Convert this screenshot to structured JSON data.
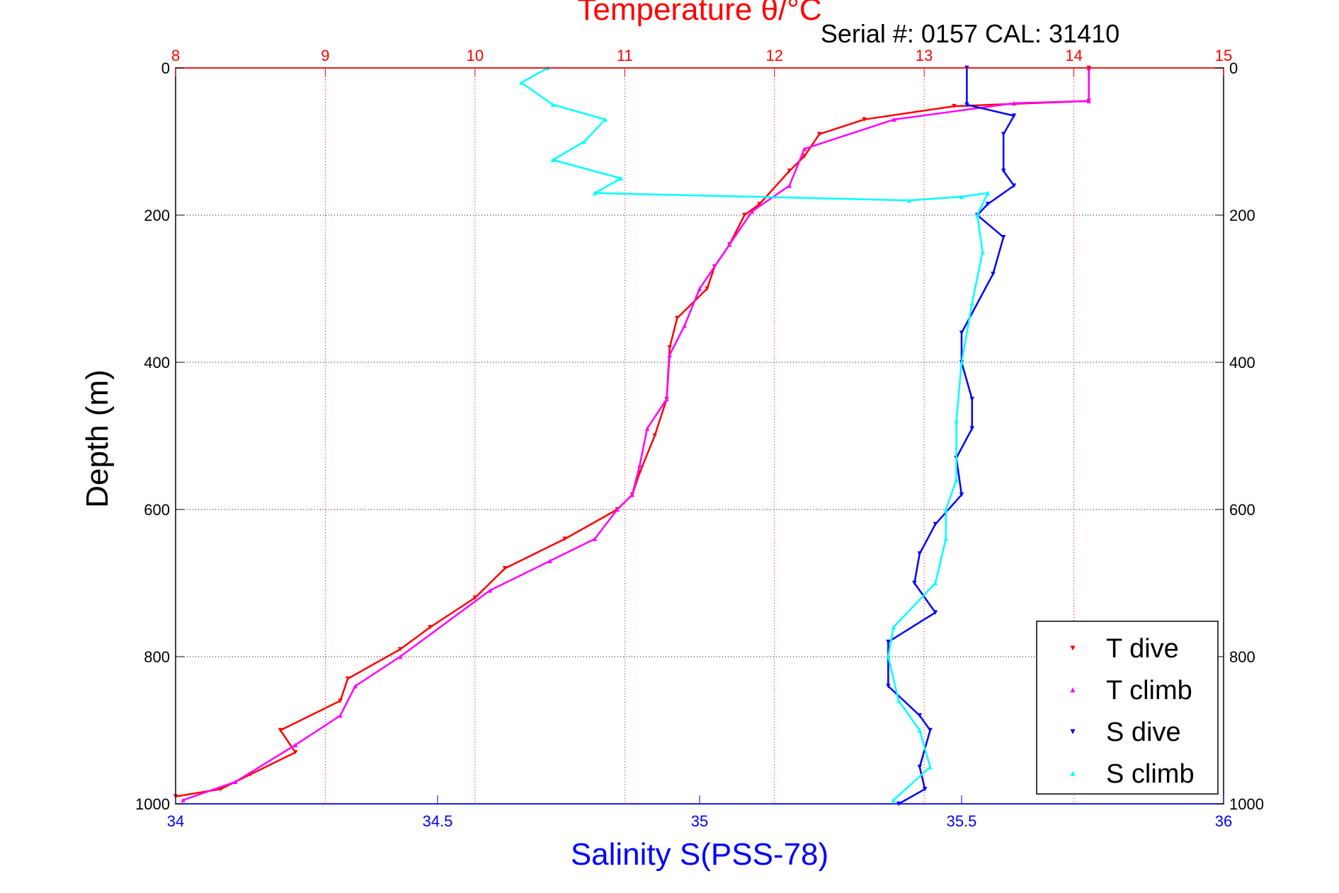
{
  "chart_data": {
    "type": "scatter",
    "title": "Temperature θ/°C",
    "subtitle": "Serial #: 0157  CAL: 31410",
    "ylabel": "Depth (m)",
    "xlabel": "Salinity S(PSS-78)",
    "temperature_axis": {
      "position": "top",
      "range": [
        8,
        15
      ],
      "ticks": [
        8,
        9,
        10,
        11,
        12,
        13,
        14,
        15
      ],
      "tick_labels": [
        "8",
        "9",
        "10",
        "11",
        "12",
        "13",
        "14",
        "15"
      ],
      "color": "#ff0000"
    },
    "salinity_axis": {
      "position": "bottom",
      "range": [
        34,
        36
      ],
      "ticks": [
        34,
        34.5,
        35,
        35.5,
        36
      ],
      "tick_labels": [
        "34",
        "34.5",
        "35",
        "35.5",
        "36"
      ],
      "color": "#0000ff"
    },
    "depth_axis": {
      "range": [
        0,
        1000
      ],
      "reversed": true,
      "ticks": [
        0,
        200,
        400,
        600,
        800,
        1000
      ],
      "tick_labels": [
        "0",
        "200",
        "400",
        "600",
        "800",
        "1000"
      ]
    },
    "grid": true,
    "legend": {
      "placement": "bottom-right"
    },
    "series": [
      {
        "name": "T dive",
        "axis": "temperature",
        "color": "#ff0000",
        "points": [
          [
            14.1,
            0
          ],
          [
            14.1,
            45
          ],
          [
            13.2,
            52
          ],
          [
            12.6,
            70
          ],
          [
            12.3,
            90
          ],
          [
            12.2,
            120
          ],
          [
            12.1,
            140
          ],
          [
            11.9,
            185
          ],
          [
            11.8,
            200
          ],
          [
            11.7,
            240
          ],
          [
            11.6,
            270
          ],
          [
            11.55,
            300
          ],
          [
            11.35,
            340
          ],
          [
            11.3,
            380
          ],
          [
            11.28,
            450
          ],
          [
            11.2,
            500
          ],
          [
            11.1,
            550
          ],
          [
            11.05,
            580
          ],
          [
            10.95,
            600
          ],
          [
            10.6,
            640
          ],
          [
            10.2,
            680
          ],
          [
            10.0,
            720
          ],
          [
            9.7,
            760
          ],
          [
            9.5,
            790
          ],
          [
            9.15,
            830
          ],
          [
            9.1,
            860
          ],
          [
            8.7,
            900
          ],
          [
            8.8,
            930
          ],
          [
            8.5,
            960
          ],
          [
            8.3,
            980
          ],
          [
            8.0,
            990
          ]
        ]
      },
      {
        "name": "T climb",
        "axis": "temperature",
        "color": "#ff00ff",
        "points": [
          [
            14.1,
            0
          ],
          [
            14.1,
            45
          ],
          [
            13.6,
            48
          ],
          [
            12.8,
            70
          ],
          [
            12.2,
            110
          ],
          [
            12.1,
            160
          ],
          [
            11.85,
            195
          ],
          [
            11.7,
            240
          ],
          [
            11.5,
            300
          ],
          [
            11.4,
            350
          ],
          [
            11.3,
            390
          ],
          [
            11.28,
            450
          ],
          [
            11.15,
            490
          ],
          [
            11.1,
            540
          ],
          [
            11.05,
            580
          ],
          [
            10.95,
            600
          ],
          [
            10.8,
            640
          ],
          [
            10.5,
            670
          ],
          [
            10.1,
            710
          ],
          [
            9.5,
            800
          ],
          [
            9.2,
            840
          ],
          [
            9.1,
            880
          ],
          [
            8.8,
            920
          ],
          [
            8.4,
            970
          ],
          [
            8.05,
            995
          ]
        ]
      },
      {
        "name": "S dive",
        "axis": "salinity",
        "color": "#0000ff",
        "points": [
          [
            35.51,
            0
          ],
          [
            35.51,
            50
          ],
          [
            35.6,
            65
          ],
          [
            35.58,
            90
          ],
          [
            35.58,
            140
          ],
          [
            35.6,
            160
          ],
          [
            35.55,
            185
          ],
          [
            35.53,
            200
          ],
          [
            35.58,
            230
          ],
          [
            35.56,
            280
          ],
          [
            35.5,
            360
          ],
          [
            35.5,
            400
          ],
          [
            35.52,
            450
          ],
          [
            35.52,
            490
          ],
          [
            35.49,
            530
          ],
          [
            35.5,
            580
          ],
          [
            35.45,
            620
          ],
          [
            35.42,
            660
          ],
          [
            35.41,
            700
          ],
          [
            35.45,
            740
          ],
          [
            35.36,
            780
          ],
          [
            35.36,
            840
          ],
          [
            35.42,
            880
          ],
          [
            35.44,
            900
          ],
          [
            35.42,
            950
          ],
          [
            35.43,
            980
          ],
          [
            35.38,
            1000
          ]
        ]
      },
      {
        "name": "S climb",
        "axis": "salinity",
        "color": "#00ffff",
        "points": [
          [
            34.71,
            0
          ],
          [
            34.66,
            20
          ],
          [
            34.72,
            50
          ],
          [
            34.82,
            70
          ],
          [
            34.78,
            100
          ],
          [
            34.72,
            125
          ],
          [
            34.85,
            150
          ],
          [
            34.8,
            170
          ],
          [
            35.4,
            180
          ],
          [
            35.5,
            175
          ],
          [
            35.55,
            170
          ],
          [
            35.53,
            200
          ],
          [
            35.54,
            250
          ],
          [
            35.52,
            320
          ],
          [
            35.5,
            400
          ],
          [
            35.49,
            480
          ],
          [
            35.49,
            560
          ],
          [
            35.47,
            600
          ],
          [
            35.47,
            640
          ],
          [
            35.45,
            700
          ],
          [
            35.37,
            760
          ],
          [
            35.36,
            800
          ],
          [
            35.38,
            860
          ],
          [
            35.42,
            900
          ],
          [
            35.44,
            950
          ],
          [
            35.37,
            995
          ]
        ]
      }
    ]
  }
}
